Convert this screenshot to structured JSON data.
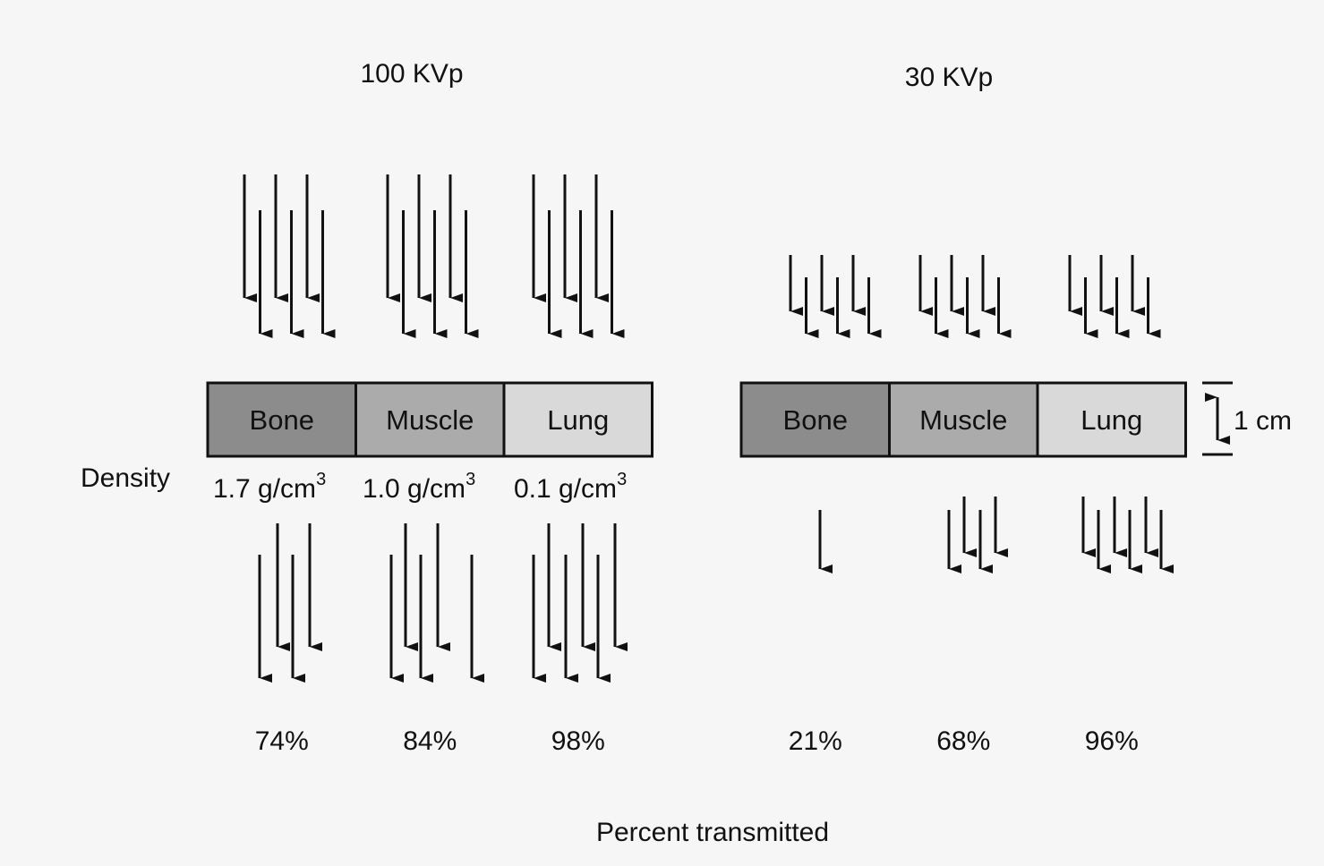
{
  "panels": [
    {
      "title": "100 KVp",
      "segments": [
        "Bone",
        "Muscle",
        "Lung"
      ],
      "percents": [
        "74%",
        "84%",
        "98%"
      ]
    },
    {
      "title": "30 KVp",
      "segments": [
        "Bone",
        "Muscle",
        "Lung"
      ],
      "percents": [
        "21%",
        "68%",
        "96%"
      ]
    }
  ],
  "density_label": "Density",
  "densities": [
    {
      "text": "1.7 g/cm",
      "exponent": "3"
    },
    {
      "text": "1.0 g/cm",
      "exponent": "3"
    },
    {
      "text": "0.1 g/cm",
      "exponent": "3"
    }
  ],
  "thickness_label": "1 cm",
  "footer": "Percent transmitted"
}
